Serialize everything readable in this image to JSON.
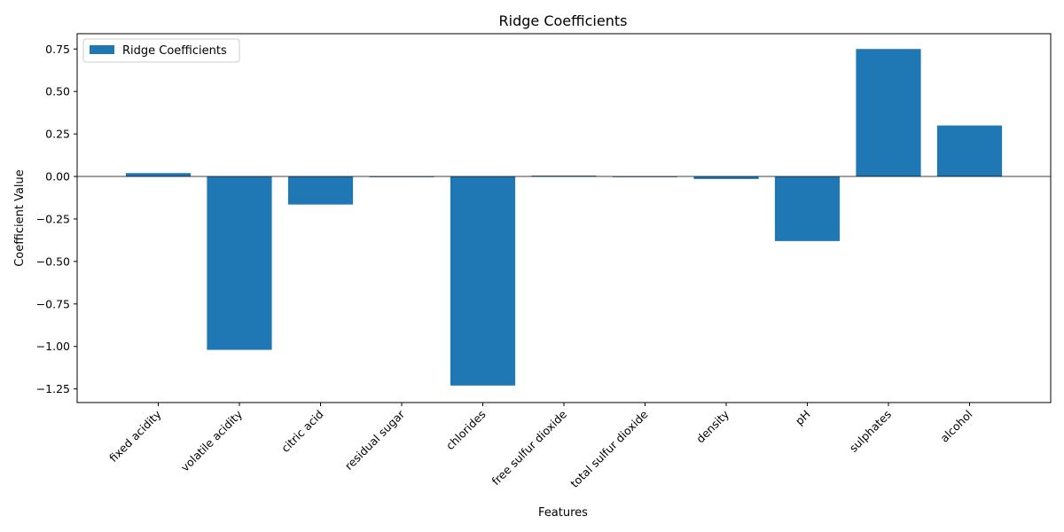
{
  "chart_data": {
    "type": "bar",
    "title": "Ridge Coefficients",
    "xlabel": "Features",
    "ylabel": "Coefficient Value",
    "categories": [
      "fixed acidity",
      "volatile acidity",
      "citric acid",
      "residual sugar",
      "chlorides",
      "free sulfur dioxide",
      "total sulfur dioxide",
      "density",
      "pH",
      "sulphates",
      "alcohol"
    ],
    "series": [
      {
        "name": "Ridge Coefficients",
        "values": [
          0.02,
          -1.02,
          -0.165,
          -0.002,
          -1.23,
          0.005,
          -0.003,
          -0.015,
          -0.38,
          0.75,
          0.3
        ]
      }
    ],
    "ylim": [
      -1.33,
      0.84
    ],
    "yticks": [
      0.75,
      0.5,
      0.25,
      0.0,
      -0.25,
      -0.5,
      -0.75,
      -1.0,
      -1.25
    ],
    "ytick_labels": [
      "0.75",
      "0.50",
      "0.25",
      "0.00",
      "−0.25",
      "−0.50",
      "−0.75",
      "−1.00",
      "−1.25"
    ],
    "zero_line": true,
    "grid": false,
    "legend": "top-left",
    "bar_color": "#1f77b4"
  }
}
